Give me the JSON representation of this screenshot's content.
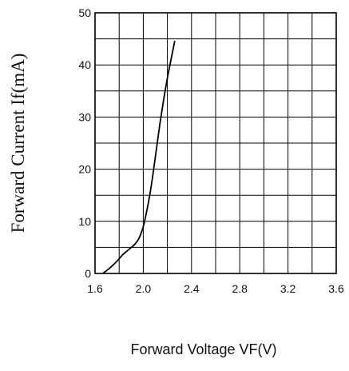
{
  "chart_data": {
    "type": "line",
    "xlabel": "Forward Voltage VF(V)",
    "ylabel": "Forward Current If(mA)",
    "xlim": [
      1.6,
      3.6
    ],
    "ylim": [
      0,
      50
    ],
    "x_ticks": [
      "1.6",
      "2.0",
      "2.4",
      "2.8",
      "3.2",
      "3.6"
    ],
    "y_ticks": [
      "0",
      "10",
      "20",
      "30",
      "40",
      "50"
    ],
    "grid": true,
    "series": [
      {
        "color": "#000000",
        "x": [
          1.67,
          1.72,
          1.78,
          1.83,
          1.88,
          1.93,
          1.97,
          2.0,
          2.02,
          2.05,
          2.08,
          2.11,
          2.14,
          2.17,
          2.2,
          2.23,
          2.26
        ],
        "y": [
          0.1,
          1.0,
          2.3,
          3.6,
          4.6,
          5.6,
          7.0,
          9.0,
          11.0,
          14.5,
          19.0,
          24.0,
          29.0,
          33.5,
          37.5,
          41.0,
          44.5
        ]
      }
    ]
  }
}
